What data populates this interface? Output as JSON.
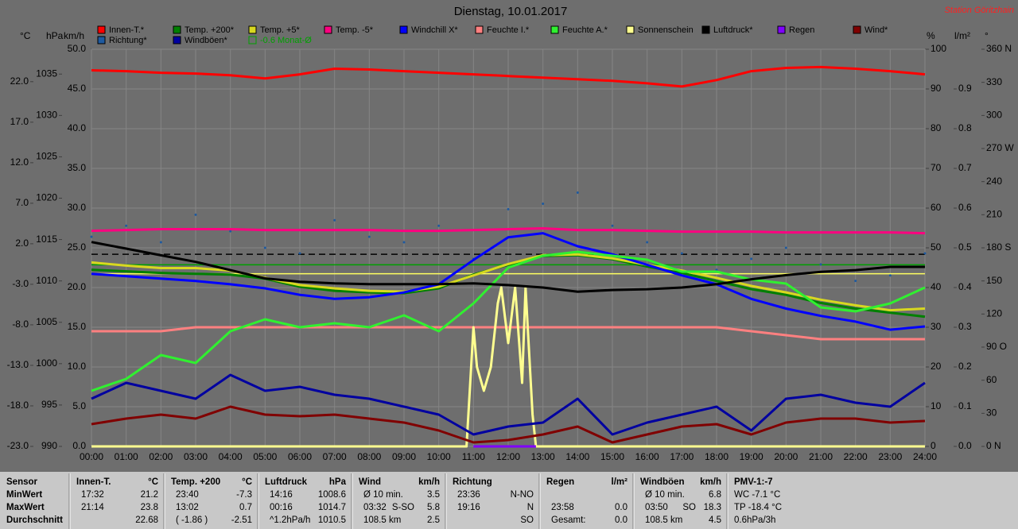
{
  "chart_data": {
    "type": "line",
    "title": "Dienstag, 10.01.2017",
    "station": "Station Göritzhain",
    "x": [
      0,
      1,
      2,
      3,
      4,
      5,
      6,
      7,
      8,
      9,
      10,
      11,
      12,
      13,
      14,
      15,
      16,
      17,
      18,
      19,
      20,
      21,
      22,
      23,
      24
    ],
    "xlim": [
      0,
      24
    ],
    "xticks": [
      {
        "value": 0,
        "label": "00:00"
      },
      {
        "value": 1,
        "label": "01:00"
      },
      {
        "value": 2,
        "label": "02:00"
      },
      {
        "value": 3,
        "label": "03:00"
      },
      {
        "value": 4,
        "label": "04:00"
      },
      {
        "value": 5,
        "label": "05:00"
      },
      {
        "value": 6,
        "label": "06:00"
      },
      {
        "value": 7,
        "label": "07:00"
      },
      {
        "value": 8,
        "label": "08:00"
      },
      {
        "value": 9,
        "label": "09:00"
      },
      {
        "value": 10,
        "label": "10:00"
      },
      {
        "value": 11,
        "label": "11:00"
      },
      {
        "value": 12,
        "label": "12:00"
      },
      {
        "value": 13,
        "label": "13:00"
      },
      {
        "value": 14,
        "label": "14:00"
      },
      {
        "value": 15,
        "label": "15:00"
      },
      {
        "value": 16,
        "label": "16:00"
      },
      {
        "value": 17,
        "label": "17:00"
      },
      {
        "value": 18,
        "label": "18:00"
      },
      {
        "value": 19,
        "label": "19:00"
      },
      {
        "value": 20,
        "label": "20:00"
      },
      {
        "value": 21,
        "label": "21:00"
      },
      {
        "value": 22,
        "label": "22:00"
      },
      {
        "value": 23,
        "label": "23:00"
      },
      {
        "value": 24,
        "label": "24:00"
      }
    ],
    "axes": {
      "c": {
        "label": "°C",
        "lim": [
          -23,
          26
        ],
        "ticks": [
          {
            "value": -23,
            "label": "-23.0"
          },
          {
            "value": -18,
            "label": "-18.0"
          },
          {
            "value": -13,
            "label": "-13.0"
          },
          {
            "value": -8,
            "label": "-8.0"
          },
          {
            "value": -3,
            "label": "-3.0"
          },
          {
            "value": 2,
            "label": "2.0"
          },
          {
            "value": 7,
            "label": "7.0"
          },
          {
            "value": 12,
            "label": "12.0"
          },
          {
            "value": 17,
            "label": "17.0"
          },
          {
            "value": 22,
            "label": "22.0"
          }
        ]
      },
      "hpa": {
        "label": "hPa",
        "lim": [
          990,
          1038
        ],
        "ticks": [
          990,
          995,
          1000,
          1005,
          1010,
          1015,
          1020,
          1025,
          1030,
          1035
        ]
      },
      "kmh": {
        "label": "km/h",
        "lim": [
          0,
          50
        ],
        "ticks": [
          {
            "value": 0,
            "label": "0.0"
          },
          {
            "value": 5,
            "label": "5.0"
          },
          {
            "value": 10,
            "label": "10.0"
          },
          {
            "value": 15,
            "label": "15.0"
          },
          {
            "value": 20,
            "label": "20.0"
          },
          {
            "value": 25,
            "label": "25.0"
          },
          {
            "value": 30,
            "label": "30.0"
          },
          {
            "value": 35,
            "label": "35.0"
          },
          {
            "value": 40,
            "label": "40.0"
          },
          {
            "value": 45,
            "label": "45.0"
          },
          {
            "value": 50,
            "label": "50.0"
          }
        ]
      },
      "pct": {
        "label": "%",
        "lim": [
          0,
          100
        ],
        "ticks": [
          0,
          10,
          20,
          30,
          40,
          50,
          60,
          70,
          80,
          90,
          100
        ]
      },
      "lm2": {
        "label": "l/m²",
        "lim": [
          0,
          1
        ],
        "ticks": [
          {
            "value": 0,
            "label": "0.0"
          },
          0.1,
          0.2,
          0.3,
          0.4,
          0.5,
          0.6,
          0.7,
          0.8,
          0.9
        ]
      },
      "deg": {
        "label": "°",
        "lim": [
          0,
          360
        ],
        "ticks": [
          {
            "value": 0,
            "label": "0 N"
          },
          30,
          60,
          {
            "value": 90,
            "label": "90 O"
          },
          120,
          150,
          {
            "value": 180,
            "label": "180 S"
          },
          210,
          240,
          {
            "value": 270,
            "label": "270 W"
          },
          300,
          330,
          {
            "value": 360,
            "label": "360 N"
          }
        ]
      }
    },
    "grid": true,
    "series": [
      {
        "name": "Innen-T.*",
        "color": "#ff0000",
        "axis": "c",
        "values": [
          23.4,
          23.3,
          23.1,
          23.0,
          22.8,
          22.4,
          22.9,
          23.6,
          23.5,
          23.3,
          23.1,
          22.9,
          22.7,
          22.5,
          22.3,
          22.1,
          21.8,
          21.4,
          22.2,
          23.3,
          23.7,
          23.8,
          23.6,
          23.3,
          22.9
        ]
      },
      {
        "name": "Temp. +200*",
        "color": "#008000",
        "axis": "c",
        "values": [
          -1.2,
          -1.4,
          -1.6,
          -1.7,
          -1.8,
          -2.3,
          -3.3,
          -3.8,
          -4.0,
          -4.1,
          -3.5,
          -1.8,
          -0.6,
          0.5,
          0.6,
          0.1,
          -0.8,
          -1.6,
          -2.6,
          -3.6,
          -4.3,
          -5.3,
          -6.0,
          -6.5,
          -7.0
        ]
      },
      {
        "name": "Temp. +5*",
        "color": "#d8d820",
        "axis": "c",
        "values": [
          -0.3,
          -0.7,
          -1.0,
          -1.0,
          -1.3,
          -2.2,
          -3.1,
          -3.5,
          -3.8,
          -3.9,
          -3.3,
          -1.9,
          -0.5,
          0.6,
          0.7,
          0.2,
          -0.6,
          -1.3,
          -2.2,
          -3.2,
          -4.0,
          -4.9,
          -5.6,
          -6.2,
          -6.0
        ]
      },
      {
        "name": "Temp. -5*",
        "color": "#ff0080",
        "axis": "c",
        "values": [
          3.6,
          3.7,
          3.8,
          3.8,
          3.8,
          3.7,
          3.7,
          3.7,
          3.7,
          3.6,
          3.6,
          3.7,
          3.8,
          3.9,
          3.7,
          3.7,
          3.6,
          3.5,
          3.5,
          3.5,
          3.4,
          3.4,
          3.4,
          3.4,
          3.3
        ]
      },
      {
        "name": "Windchill X*",
        "color": "#0000ff",
        "axis": "c",
        "values": [
          -1.7,
          -2.0,
          -2.3,
          -2.6,
          -3.0,
          -3.5,
          -4.3,
          -4.8,
          -4.6,
          -4.0,
          -3.0,
          0.0,
          2.8,
          3.3,
          1.7,
          0.7,
          -0.6,
          -1.9,
          -3.0,
          -4.8,
          -6.0,
          -6.9,
          -7.6,
          -8.6,
          -8.2
        ]
      },
      {
        "name": "Feuchte I.*",
        "color": "#ff8080",
        "axis": "pct",
        "values": [
          29,
          29,
          29,
          30,
          30,
          30,
          30,
          30,
          30,
          30,
          30,
          30,
          30,
          30,
          30,
          30,
          30,
          30,
          30,
          29,
          28,
          27,
          27,
          27,
          27
        ]
      },
      {
        "name": "Feuchte A.*",
        "color": "#30f030",
        "axis": "pct",
        "values": [
          14,
          17,
          23,
          21,
          29,
          32,
          30,
          31,
          30,
          33,
          29,
          36,
          45,
          48,
          49,
          48,
          47,
          44,
          44,
          42,
          41,
          35,
          34,
          36,
          40
        ]
      },
      {
        "name": "Sonnenschein",
        "color": "#ffff90",
        "axis": "kmh",
        "x": [
          0,
          10.8,
          11.0,
          11.1,
          11.3,
          11.5,
          11.7,
          11.8,
          12.0,
          12.2,
          12.4,
          12.5,
          12.7,
          12.8,
          24
        ],
        "values": [
          0,
          0,
          15,
          10,
          7,
          10,
          18,
          20,
          13,
          20,
          8,
          20,
          4,
          0,
          0
        ]
      },
      {
        "name": "Luftdruck*",
        "color": "#000000",
        "axis": "hpa",
        "values": [
          1014.7,
          1013.9,
          1013.1,
          1012.3,
          1011.3,
          1010.3,
          1009.9,
          1009.7,
          1009.6,
          1009.6,
          1009.6,
          1009.7,
          1009.5,
          1009.2,
          1008.7,
          1008.9,
          1009.0,
          1009.2,
          1009.6,
          1010.2,
          1010.7,
          1011.1,
          1011.3,
          1011.7,
          1011.7
        ]
      },
      {
        "name": "Regen",
        "color": "#8000ff",
        "axis": "lm2",
        "x": [
          11,
          12.8
        ],
        "values": [
          0,
          0
        ]
      },
      {
        "name": "Wind*",
        "color": "#800000",
        "axis": "kmh",
        "values": [
          2.8,
          3.5,
          4,
          3.5,
          5,
          4,
          3.8,
          4,
          3.5,
          3,
          2,
          0.5,
          0.8,
          1.5,
          2.5,
          0.5,
          1.5,
          2.5,
          2.8,
          1.5,
          3,
          3.5,
          3.5,
          3,
          3.2
        ]
      },
      {
        "name": "Richtung*",
        "color": "#1e5aa0",
        "axis": "deg",
        "style": "dots",
        "values": [
          190,
          200,
          185,
          210,
          195,
          180,
          175,
          205,
          190,
          185,
          200,
          170,
          215,
          220,
          230,
          200,
          185,
          175,
          160,
          170,
          180,
          165,
          150,
          155,
          175
        ]
      },
      {
        "name": "Windböen*",
        "color": "#0000a0",
        "axis": "kmh",
        "values": [
          6,
          8,
          7,
          6,
          9,
          7,
          7.5,
          6.5,
          6,
          5,
          4,
          1.5,
          2.5,
          3,
          6,
          1.5,
          3,
          4,
          5,
          2,
          6,
          6.5,
          5.5,
          5,
          8
        ]
      }
    ],
    "reference_lines": [
      {
        "name": "-0.6 Monat-Ø",
        "color": "#00a000",
        "axis": "c",
        "value": -0.6
      },
      {
        "color": "#000000",
        "axis": "c",
        "value": 0.7,
        "dashed": true
      },
      {
        "color": "#ffff60",
        "axis": "c",
        "value": -1.7
      }
    ]
  },
  "table": [
    {
      "header": [
        "Sensor"
      ],
      "rows": [
        [
          "MinWert"
        ],
        [
          "MaxWert"
        ],
        [
          "Durchschnitt"
        ]
      ]
    },
    {
      "header": [
        "Innen-T.",
        "°C"
      ],
      "rows": [
        [
          "17:32",
          "21.2"
        ],
        [
          "21:14",
          "23.8"
        ],
        [
          "22.68"
        ]
      ]
    },
    {
      "header": [
        "Temp. +200",
        "°C"
      ],
      "rows": [
        [
          "23:40",
          "-7.3"
        ],
        [
          "13:02",
          "0.7"
        ],
        [
          "( -1.86 )",
          "-2.51"
        ]
      ]
    },
    {
      "header": [
        "Luftdruck",
        "hPa"
      ],
      "rows": [
        [
          "14:16",
          "1008.6"
        ],
        [
          "00:16",
          "1014.7"
        ],
        [
          "^1.2hPa/h",
          "1010.5"
        ]
      ]
    },
    {
      "header": [
        "Wind",
        "km/h"
      ],
      "rows": [
        [
          "Ø 10 min.",
          "3.5"
        ],
        [
          "03:32",
          "S-SO",
          "5.8"
        ],
        [
          "108.5 km",
          "2.5"
        ]
      ]
    },
    {
      "header": [
        "Richtung"
      ],
      "rows": [
        [
          "23:36",
          "N-NO"
        ],
        [
          "19:16",
          "N"
        ],
        [
          "SO"
        ]
      ]
    },
    {
      "header": [
        "Regen",
        "l/m²"
      ],
      "rows": [
        [],
        [
          "23:58",
          "0.0"
        ],
        [
          "Gesamt:",
          "0.0"
        ]
      ]
    },
    {
      "header": [
        "Windböen",
        "km/h"
      ],
      "rows": [
        [
          "Ø 10 min.",
          "6.8"
        ],
        [
          "03:50",
          "SO",
          "18.3"
        ],
        [
          "108.5 km",
          "4.5"
        ]
      ]
    },
    {
      "header": [
        "PMV-1:-7"
      ],
      "rows": [
        [
          "WC -7.1 °C"
        ],
        [
          "TP -18.4 °C"
        ],
        [
          "0.6hPa/3h"
        ]
      ]
    }
  ]
}
